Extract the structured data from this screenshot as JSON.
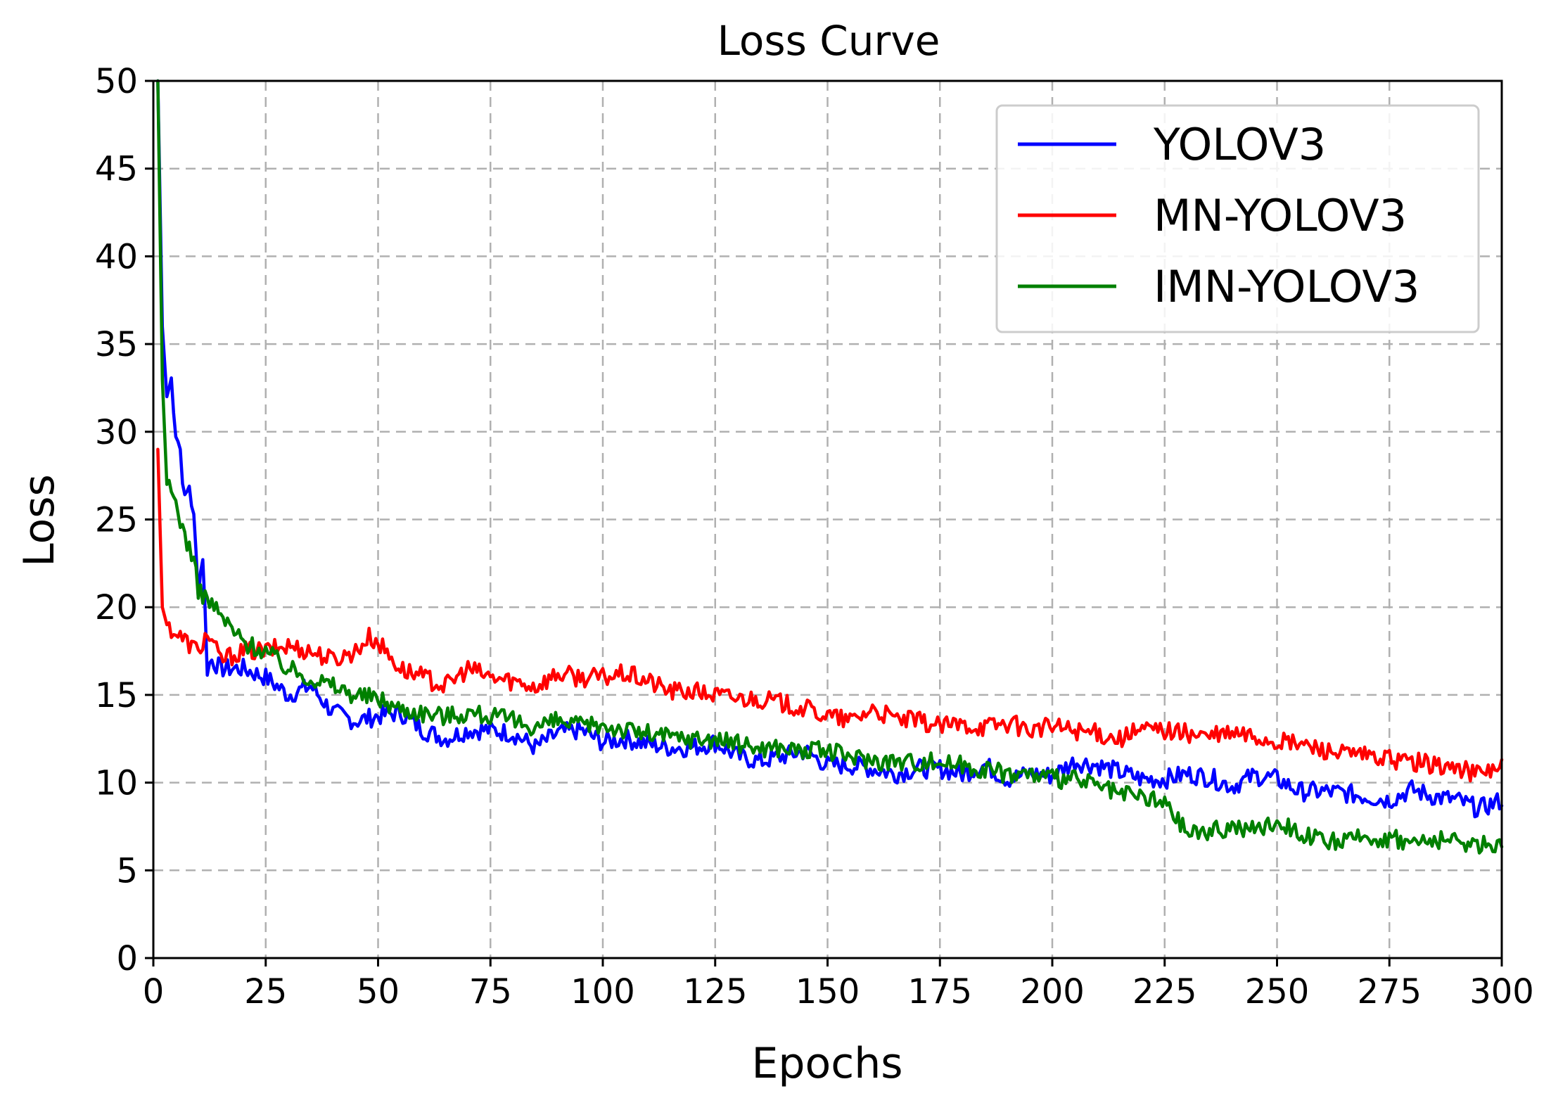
{
  "chart_data": {
    "type": "line",
    "title": "Loss Curve",
    "xlabel": "Epochs",
    "ylabel": "Loss",
    "xlim": [
      0,
      300
    ],
    "ylim": [
      0,
      50
    ],
    "xticks": [
      0,
      25,
      50,
      75,
      100,
      125,
      150,
      175,
      200,
      225,
      250,
      275,
      300
    ],
    "yticks": [
      0,
      5,
      10,
      15,
      20,
      25,
      30,
      35,
      40,
      45,
      50
    ],
    "grid": true,
    "legend_position": "top-right",
    "series": [
      {
        "name": "YOLOV3",
        "color": "#0000ff",
        "x": [
          1,
          2,
          3,
          4,
          5,
          6,
          7,
          8,
          9,
          10,
          11,
          12,
          13,
          15,
          20,
          25,
          30,
          35,
          40,
          45,
          50,
          55,
          60,
          65,
          70,
          75,
          80,
          85,
          90,
          95,
          100,
          105,
          110,
          115,
          120,
          125,
          130,
          135,
          140,
          145,
          150,
          155,
          160,
          165,
          170,
          175,
          180,
          185,
          190,
          195,
          200,
          205,
          210,
          215,
          220,
          225,
          230,
          235,
          240,
          245,
          250,
          255,
          260,
          265,
          270,
          275,
          280,
          285,
          290,
          295,
          300
        ],
        "y": [
          50,
          36,
          32,
          33,
          30,
          29,
          26,
          27,
          25,
          21,
          23,
          16.5,
          17,
          16.5,
          16.5,
          16,
          15,
          15.5,
          14,
          13.5,
          13.8,
          14,
          13,
          12.5,
          13,
          13,
          12.8,
          12,
          12.8,
          13,
          12.3,
          12.5,
          12.2,
          12,
          12,
          12.3,
          11.5,
          11.2,
          11.5,
          11.8,
          11,
          11,
          10.8,
          10.5,
          10.8,
          10.8,
          10.5,
          11,
          10.2,
          10.5,
          10.4,
          11.2,
          11,
          10.6,
          10.2,
          10.2,
          10.5,
          10.3,
          9.8,
          10.4,
          10.2,
          9.5,
          9.5,
          9.4,
          9.2,
          9,
          9.6,
          9.2,
          9,
          8.5,
          9
        ]
      },
      {
        "name": "MN-YOLOV3",
        "color": "#ff0000",
        "x": [
          1,
          2,
          3,
          5,
          10,
          12,
          15,
          20,
          25,
          30,
          35,
          40,
          45,
          48,
          50,
          55,
          60,
          65,
          70,
          75,
          80,
          85,
          90,
          95,
          100,
          105,
          110,
          115,
          120,
          125,
          130,
          135,
          140,
          145,
          150,
          155,
          160,
          165,
          170,
          175,
          180,
          185,
          190,
          195,
          200,
          205,
          210,
          215,
          220,
          225,
          230,
          235,
          240,
          245,
          250,
          255,
          260,
          265,
          270,
          275,
          280,
          285,
          290,
          295,
          300
        ],
        "y": [
          29,
          20,
          19,
          18.5,
          17.5,
          18.5,
          17,
          17.5,
          17.5,
          17.8,
          17.5,
          17,
          17.5,
          18.3,
          18,
          16.5,
          16,
          15.5,
          16.5,
          16,
          15.8,
          15.5,
          16.2,
          16,
          16,
          16.2,
          15.8,
          15.2,
          15.2,
          15,
          14.8,
          14.8,
          14.5,
          14.2,
          13.8,
          13.5,
          14.2,
          13.6,
          13.5,
          13.2,
          13.3,
          13.2,
          13.4,
          13,
          13.2,
          13,
          12.8,
          12.5,
          13,
          13,
          12.8,
          12.6,
          12.8,
          12.6,
          12.3,
          12.2,
          11.9,
          11.6,
          11.5,
          11.3,
          11.2,
          11,
          10.8,
          10.5,
          11
        ]
      },
      {
        "name": "IMN-YOLOV3",
        "color": "#008000",
        "x": [
          1,
          2,
          3,
          4,
          5,
          6,
          7,
          8,
          9,
          10,
          12,
          15,
          20,
          25,
          30,
          35,
          40,
          45,
          50,
          55,
          60,
          65,
          70,
          75,
          80,
          85,
          90,
          95,
          100,
          105,
          110,
          115,
          120,
          125,
          130,
          135,
          140,
          145,
          150,
          155,
          160,
          165,
          170,
          175,
          180,
          185,
          190,
          195,
          200,
          205,
          210,
          215,
          220,
          225,
          230,
          235,
          240,
          245,
          250,
          255,
          260,
          265,
          270,
          275,
          280,
          285,
          290,
          295,
          300
        ],
        "y": [
          50,
          33,
          27,
          26.5,
          26,
          25,
          24,
          23.5,
          22.5,
          21,
          20.5,
          19.5,
          18,
          17.5,
          16.5,
          16,
          15.5,
          15,
          14.8,
          14.2,
          14,
          13.8,
          14,
          13.8,
          13.5,
          13.2,
          13.5,
          13.2,
          13.3,
          13,
          12.8,
          12.6,
          12.5,
          12.5,
          12.2,
          12,
          12,
          11.8,
          11.8,
          11.5,
          11.3,
          11.2,
          11.2,
          11.2,
          11,
          10.8,
          10.5,
          10.5,
          10.2,
          10.2,
          9.8,
          9.3,
          9.2,
          8.8,
          7.2,
          7.2,
          7.5,
          7.3,
          7.8,
          7.2,
          6.6,
          6.6,
          6.9,
          6.8,
          6.6,
          6.7,
          6.6,
          6.5,
          6.5
        ]
      }
    ]
  }
}
